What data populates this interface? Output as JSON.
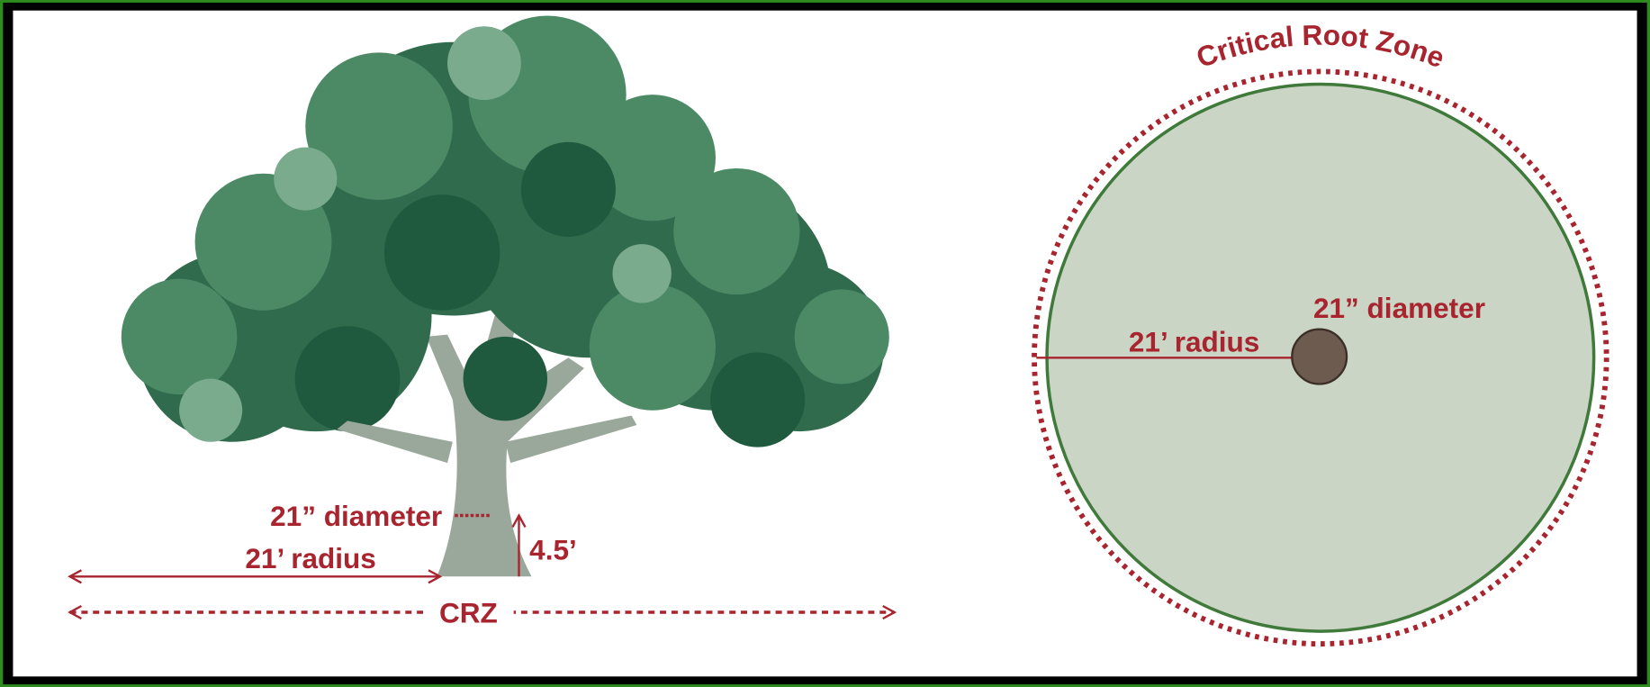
{
  "tree_view": {
    "trunk_diameter_label": "21” diameter",
    "radius_label": "21’ radius",
    "height_label": "4.5’",
    "zone_label": "CRZ"
  },
  "plan_view": {
    "title": "Critical Root Zone",
    "trunk_diameter_label": "21” diameter",
    "radius_label": "21’ radius"
  }
}
